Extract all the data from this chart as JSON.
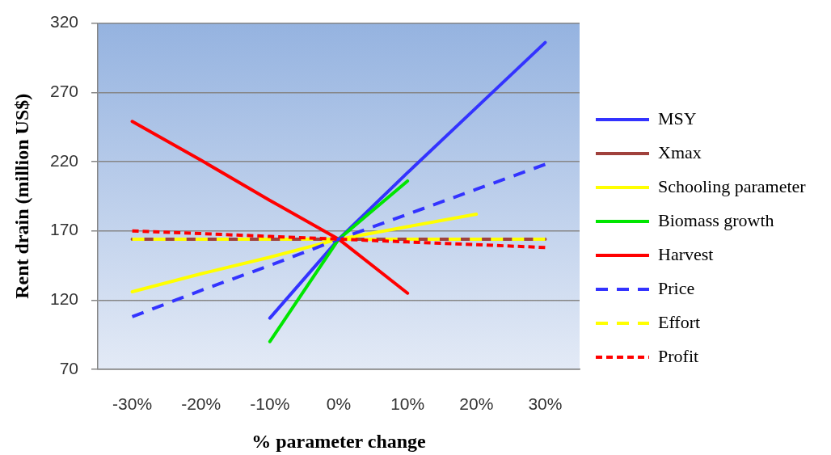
{
  "chart_data": {
    "type": "line",
    "xlabel": "% parameter change",
    "ylabel": "Rent drain (million US$)",
    "categories": [
      "-30%",
      "-20%",
      "-10%",
      "0%",
      "10%",
      "20%",
      "30%"
    ],
    "ylim": [
      70,
      320
    ],
    "yticks": [
      70,
      120,
      170,
      220,
      270,
      320
    ],
    "grid": "y",
    "legend": "right",
    "marker": "none",
    "line_style": "solid",
    "series": [
      {
        "name": "MSY",
        "color": "#3333ff",
        "values": [
          null,
          null,
          107,
          164,
          212,
          259,
          306
        ]
      },
      {
        "name": "Xmax",
        "color": "#a0413c",
        "values": [
          164,
          164,
          164,
          164,
          164,
          164,
          164
        ]
      },
      {
        "name": "Schooling parameter",
        "color": "#ffff00",
        "values": [
          126,
          139,
          151,
          164,
          173,
          182,
          null
        ]
      },
      {
        "name": "Biomass growth",
        "color": "#00e600",
        "values": [
          null,
          null,
          90,
          164,
          206,
          null,
          null
        ]
      },
      {
        "name": "Harvest",
        "color": "#ff0000",
        "values": [
          249,
          221,
          192,
          164,
          125,
          null,
          null
        ]
      },
      {
        "name": "Price",
        "color": "#3333ff",
        "line_style": "dashed",
        "values": [
          108,
          127,
          145,
          164,
          182,
          200,
          218
        ]
      },
      {
        "name": "Effort",
        "color": "#ffff00",
        "line_style": "dashed",
        "values": [
          164,
          164,
          164,
          164,
          164,
          164,
          164
        ]
      },
      {
        "name": "Profit",
        "color": "#ff0000",
        "line_style": "dotted",
        "values": [
          170,
          168,
          166,
          164,
          162,
          160,
          158
        ]
      }
    ]
  }
}
